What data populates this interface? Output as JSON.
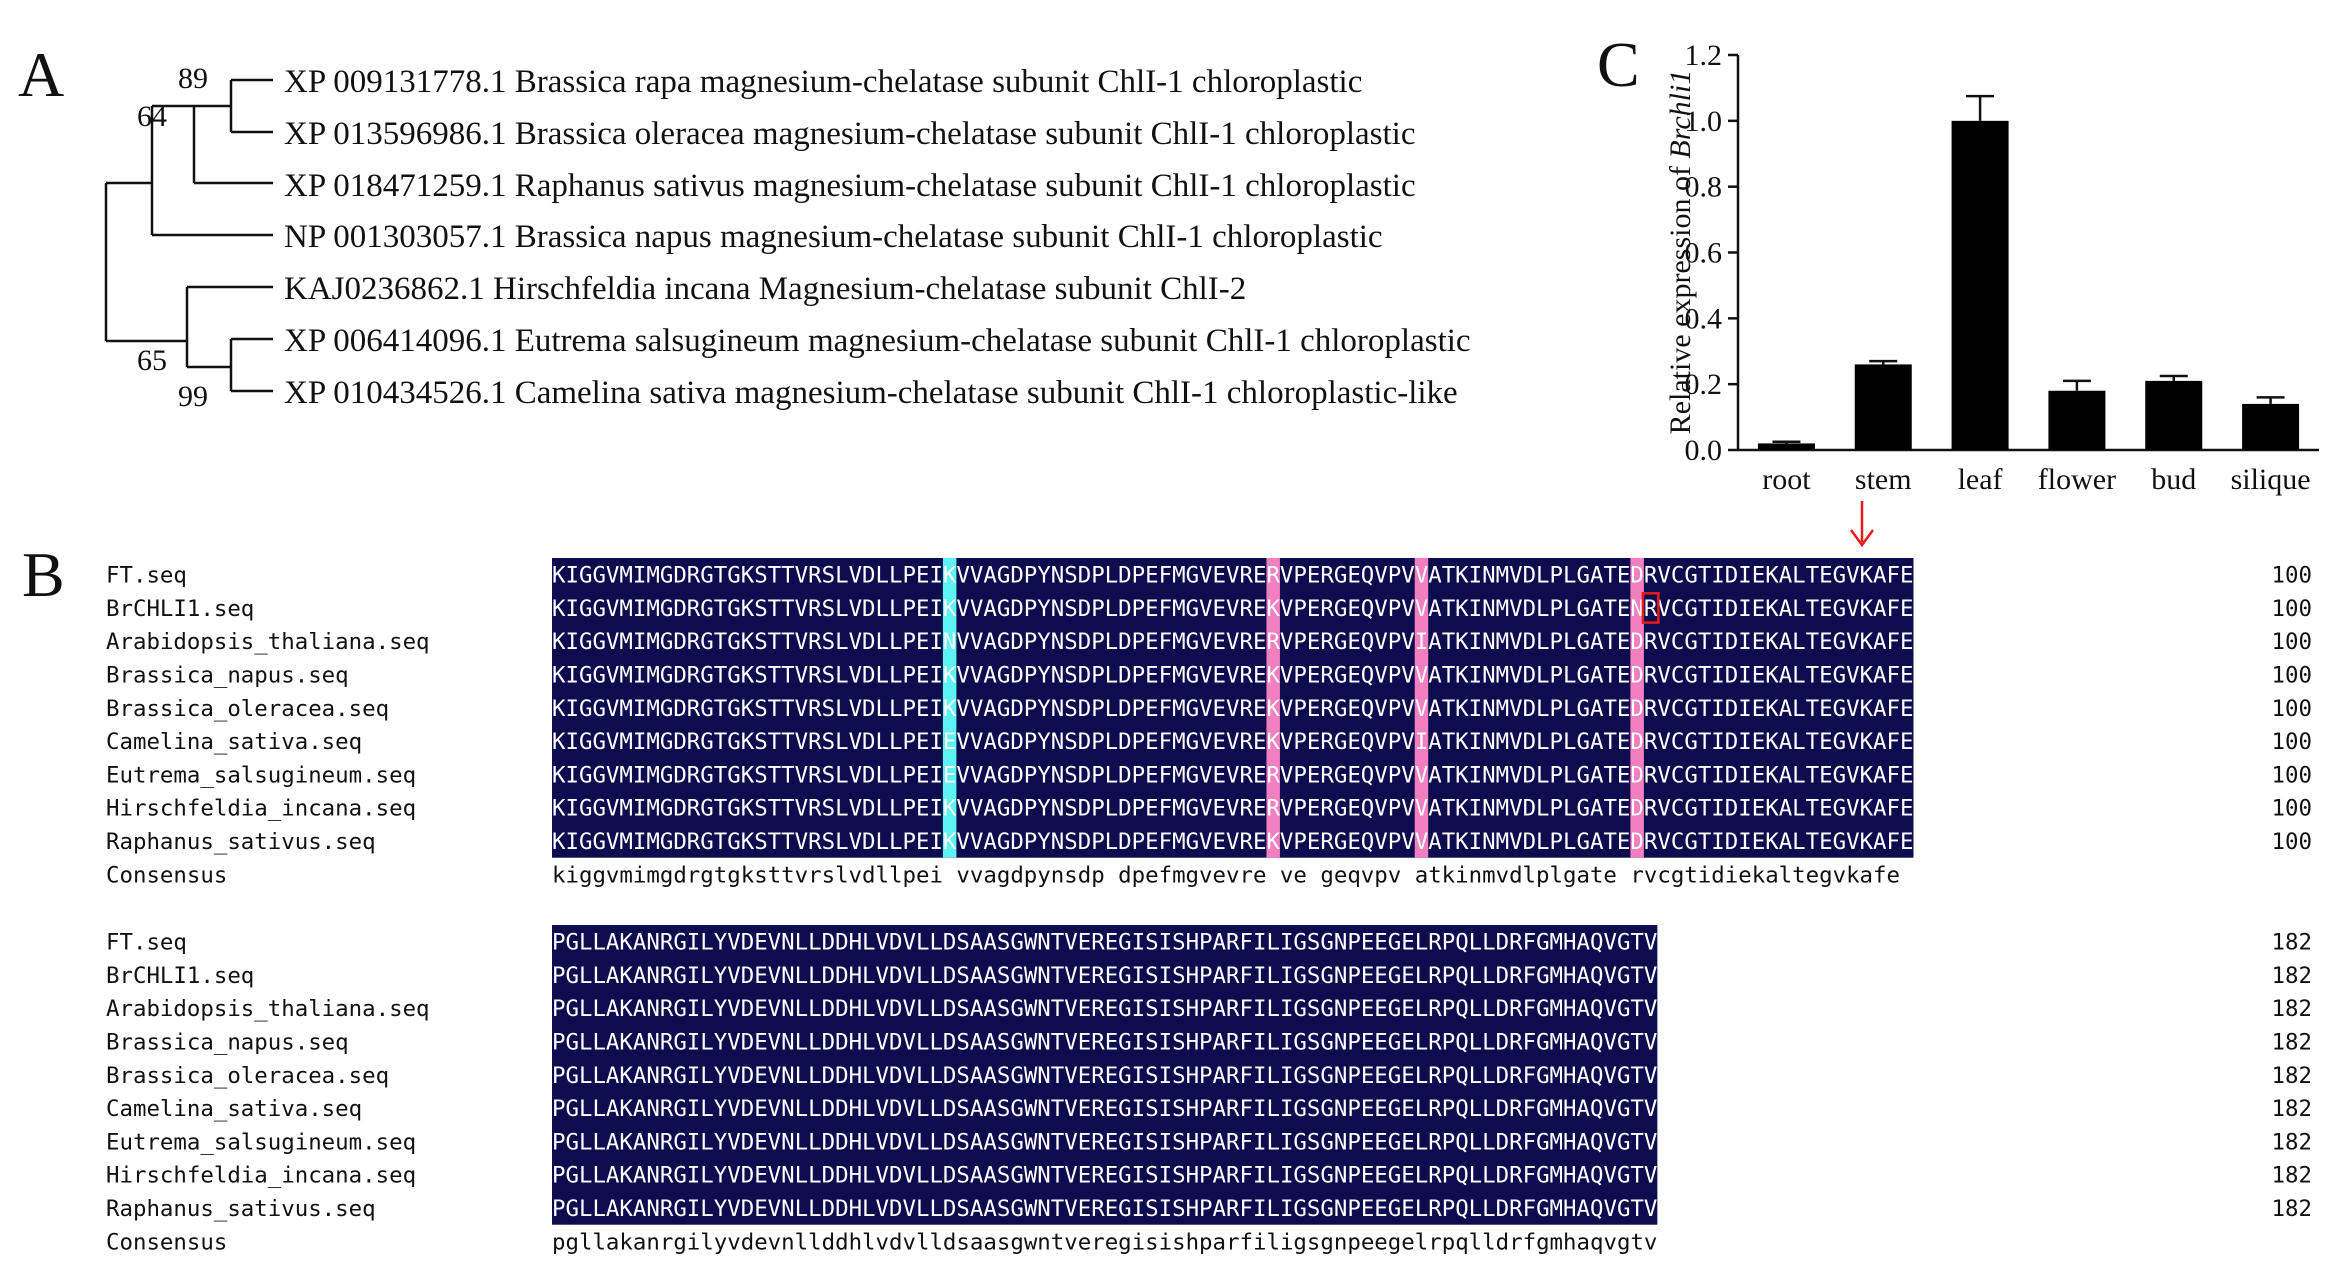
{
  "panels": {
    "a": "A",
    "b": "B",
    "c": "C"
  },
  "tree": {
    "taxa": [
      "XP 009131778.1 Brassica rapa magnesium-chelatase subunit ChlI-1 chloroplastic",
      "XP 013596986.1 Brassica oleracea magnesium-chelatase subunit ChlI-1 chloroplastic",
      "XP 018471259.1 Raphanus sativus magnesium-chelatase subunit ChlI-1 chloroplastic",
      "NP 001303057.1 Brassica napus magnesium-chelatase subunit ChlI-1 chloroplastic",
      "KAJ0236862.1 Hirschfeldia incana Magnesium-chelatase subunit ChlI-2",
      "XP 006414096.1 Eutrema salsugineum magnesium-chelatase subunit ChlI-1 chloroplastic",
      "XP 010434526.1 Camelina sativa magnesium-chelatase subunit ChlI-1 chloroplastic-like"
    ],
    "bootstrap": [
      "89",
      "64",
      "65",
      "99"
    ]
  },
  "alignment": {
    "names": [
      "FT.seq",
      "BrCHLI1.seq",
      "Arabidopsis_thaliana.seq",
      "Brassica_napus.seq",
      "Brassica_oleracea.seq",
      "Camelina_sativa.seq",
      "Eutrema_salsugineum.seq",
      "Hirschfeldia_incana.seq",
      "Raphanus_sativus.seq"
    ],
    "consensus_label": "Consensus",
    "block1": {
      "end": "100",
      "sequences": [
        "KIGGVMIMGDRGTGKSTTVRSLVDLLPEIKVVAGDPYNSDPLDPEFMGVEVRERVPERGEQVPVVATKINMVDLPLGATEDRVCGTIDIEKALTEGVKAFE",
        "KIGGVMIMGDRGTGKSTTVRSLVDLLPEIKVVAGDPYNSDPLDPEFMGVEVREKVPERGEQVPVVATKINMVDLPLGATENRVCGTIDIEKALTEGVKAFE",
        "KIGGVMIMGDRGTGKSTTVRSLVDLLPEINVVAGDPYNSDPLDPEFMGVEVRERVPERGEQVPVIATKINMVDLPLGATEDRVCGTIDIEKALTEGVKAFE",
        "KIGGVMIMGDRGTGKSTTVRSLVDLLPEIKVVAGDPYNSDPLDPEFMGVEVREKVPERGEQVPVVATKINMVDLPLGATEDRVCGTIDIEKALTEGVKAFE",
        "KIGGVMIMGDRGTGKSTTVRSLVDLLPEIKVVAGDPYNSDPLDPEFMGVEVREKVPERGEQVPVVATKINMVDLPLGATEDRVCGTIDIEKALTEGVKAFE",
        "KIGGVMIMGDRGTGKSTTVRSLVDLLPEIEVVAGDPYNSDPLDPEFMGVEVREKVPERGEQVPVIATKINMVDLPLGATEDRVCGTIDIEKALTEGVKAFE",
        "KIGGVMIMGDRGTGKSTTVRSLVDLLPEIEVVAGDPYNSDPLDPEFMGVEVRERVPERGEQVPVVATKINMVDLPLGATEDRVCGTIDIEKALTEGVKAFE",
        "KIGGVMIMGDRGTGKSTTVRSLVDLLPEIKVVAGDPYNSDPLDPEFMGVEVRERVPERGEQVPVVATKINMVDLPLGATEDRVCGTIDIEKALTEGVKAFE",
        "KIGGVMIMGDRGTGKSTTVRSLVDLLPEIKVVAGDPYNSDPLDPEFMGVEVREKVPERGEQVPVVATKINMVDLPLGATEDRVCGTIDIEKALTEGVKAFE"
      ],
      "consensus": "kiggvmimgdrgtgksttvrslvdllpei vvagdpynsdp dpefmgvevre ve geqvpv atkinmvdlplgate rvcgtidiekaltegvkafe"
    },
    "block2": {
      "end": "182",
      "sequences": [
        "PGLLAKANRGILYVDEVNLLDDHLVDVLLDSAASGWNTVEREGISISHPARFILIGSGNPEEGELRPQLLDRFGMHAQVGTV",
        "PGLLAKANRGILYVDEVNLLDDHLVDVLLDSAASGWNTVEREGISISHPARFILIGSGNPEEGELRPQLLDRFGMHAQVGTV",
        "PGLLAKANRGILYVDEVNLLDDHLVDVLLDSAASGWNTVEREGISISHPARFILIGSGNPEEGELRPQLLDRFGMHAQVGTV",
        "PGLLAKANRGILYVDEVNLLDDHLVDVLLDSAASGWNTVEREGISISHPARFILIGSGNPEEGELRPQLLDRFGMHAQVGTV",
        "PGLLAKANRGILYVDEVNLLDDHLVDVLLDSAASGWNTVEREGISISHPARFILIGSGNPEEGELRPQLLDRFGMHAQVGTV",
        "PGLLAKANRGILYVDEVNLLDDHLVDVLLDSAASGWNTVEREGISISHPARFILIGSGNPEEGELRPQLLDRFGMHAQVGTV",
        "PGLLAKANRGILYVDEVNLLDDHLVDVLLDSAASGWNTVEREGISISHPARFILIGSGNPEEGELRPQLLDRFGMHAQVGTV",
        "PGLLAKANRGILYVDEVNLLDDHLVDVLLDSAASGWNTVEREGISISHPARFILIGSGNPEEGELRPQLLDRFGMHAQVGTV",
        "PGLLAKANRGILYVDEVNLLDDHLVDVLLDSAASGWNTVEREGISISHPARFILIGSGNPEEGELRPQLLDRFGMHAQVGTV"
      ],
      "consensus": "pgllakanrgilyvdevnllddhlvdvlldsaasgwntveregisishparfiligsgnpeegelrpqlldrfgmhaqvgtv"
    },
    "colors": {
      "identical": "#0c0c4e",
      "variable_pink": "#f27fc0",
      "variable_cyan": "#5ef3f3",
      "highlight_box": "#e81a1a"
    }
  },
  "chart_data": {
    "type": "bar",
    "categories": [
      "root",
      "stem",
      "leaf",
      "flower",
      "bud",
      "silique"
    ],
    "values": [
      0.02,
      0.26,
      1.0,
      0.18,
      0.21,
      0.14
    ],
    "errors": [
      0.005,
      0.01,
      0.075,
      0.03,
      0.015,
      0.02
    ],
    "ylabel_prefix": "Relative expression of ",
    "ylabel_gene": "Brchli1",
    "ylim": [
      0,
      1.2
    ],
    "yticks": [
      "0.0",
      "0.2",
      "0.4",
      "0.6",
      "0.8",
      "1.0",
      "1.2"
    ],
    "bar_color": "#000000"
  }
}
